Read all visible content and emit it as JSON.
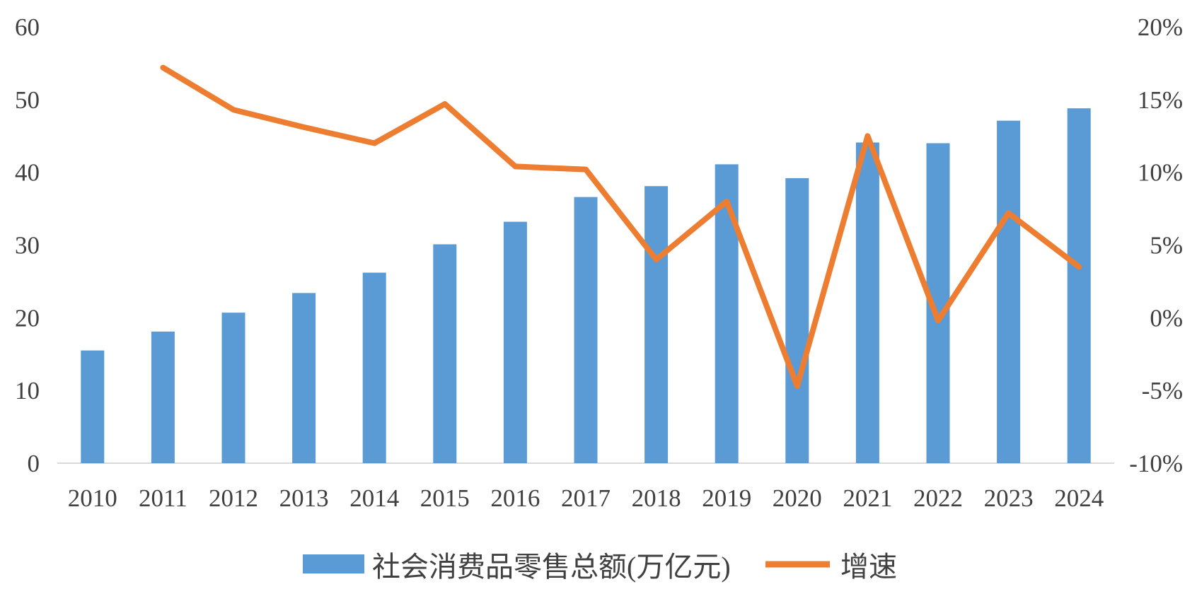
{
  "chart_data": {
    "type": "bar",
    "title": "",
    "xlabel": "",
    "ylabel": "",
    "categories": [
      "2010",
      "2011",
      "2012",
      "2013",
      "2014",
      "2015",
      "2016",
      "2017",
      "2018",
      "2019",
      "2020",
      "2021",
      "2022",
      "2023",
      "2024"
    ],
    "series": [
      {
        "name": "社会消费品零售总额(万亿元)",
        "type": "bar",
        "color": "#5B9BD5",
        "secondary_axis": false,
        "values": [
          15.5,
          18.1,
          20.7,
          23.4,
          26.2,
          30.1,
          33.2,
          36.6,
          38.1,
          41.1,
          39.2,
          44.1,
          44.0,
          47.1,
          48.8
        ]
      },
      {
        "name": "增速",
        "type": "line",
        "color": "#ED7D31",
        "secondary_axis": true,
        "values": [
          null,
          17.2,
          14.3,
          13.1,
          12.0,
          14.7,
          10.4,
          10.2,
          4.0,
          8.0,
          -4.7,
          12.5,
          -0.2,
          7.2,
          3.5
        ]
      }
    ],
    "ylim": [
      0,
      60
    ],
    "yticks": [
      0,
      10,
      20,
      30,
      40,
      50,
      60
    ],
    "yticklabels": [
      "0",
      "10",
      "20",
      "30",
      "40",
      "50",
      "60"
    ],
    "y2lim": [
      -10,
      20
    ],
    "y2ticks": [
      -10,
      -5,
      0,
      5,
      10,
      15,
      20
    ],
    "y2ticklabels": [
      "-10%",
      "-5%",
      "0%",
      "5%",
      "10%",
      "15%",
      "20%"
    ],
    "grid": false,
    "legend": "bottom",
    "axis_color": "#D9D9D9"
  }
}
